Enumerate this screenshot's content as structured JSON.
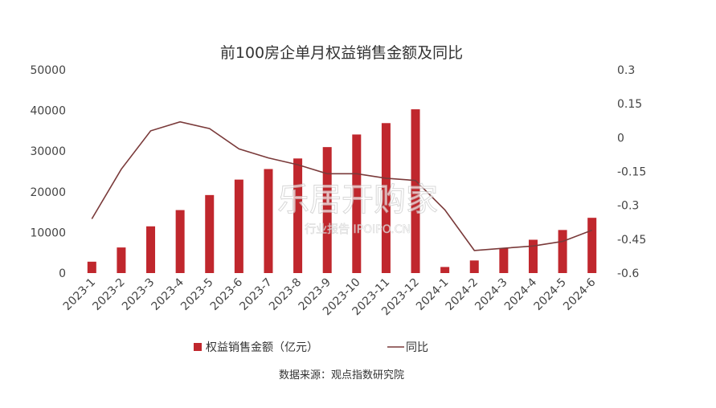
{
  "chart_data": {
    "type": "bar",
    "title": "前100房企单月权益销售金额及同比",
    "categories": [
      "2023-1",
      "2023-2",
      "2023-3",
      "2023-4",
      "2023-5",
      "2023-6",
      "2023-7",
      "2023-8",
      "2023-9",
      "2023-10",
      "2023-11",
      "2023-12",
      "2024-1",
      "2024-2",
      "2024-3",
      "2024-4",
      "2024-5",
      "2024-6"
    ],
    "series": [
      {
        "name": "权益销售金额（亿元）",
        "type": "bar",
        "axis": "left",
        "color": "#c0272d",
        "values": [
          2800,
          6300,
          11500,
          15500,
          19200,
          23000,
          25600,
          28200,
          31000,
          34100,
          36900,
          40300,
          1500,
          3100,
          6100,
          8200,
          10600,
          13600
        ]
      },
      {
        "name": "同比",
        "type": "line",
        "axis": "right",
        "color": "#7a3a3a",
        "values": [
          -0.36,
          -0.14,
          0.03,
          0.07,
          0.04,
          -0.05,
          -0.09,
          -0.12,
          -0.16,
          -0.16,
          -0.18,
          -0.19,
          -0.32,
          -0.5,
          -0.49,
          -0.48,
          -0.46,
          -0.41
        ]
      }
    ],
    "y_left": {
      "ylim": [
        0,
        50000
      ],
      "ticks": [
        "0",
        "10000",
        "20000",
        "30000",
        "40000",
        "50000"
      ]
    },
    "y_right": {
      "ylim": [
        -0.6,
        0.3
      ],
      "ticks": [
        "0.3",
        "0.15",
        "0",
        "-0.15",
        "-0.3",
        "-0.45",
        "-0.6"
      ]
    },
    "legend_position": "bottom",
    "grid": false
  },
  "legend": {
    "bar_label": "权益销售金额（亿元）",
    "line_label": "同比"
  },
  "source": "数据来源：观点指数研究院",
  "watermark": {
    "main": "乐居开购家",
    "sub": "行业报告  IPOIPO.CN"
  }
}
